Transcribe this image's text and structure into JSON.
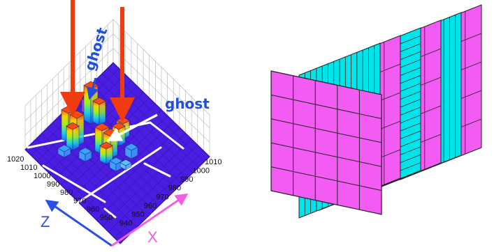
{
  "left_panel": {
    "annotations": {
      "ghost_top": "ghost",
      "ghost_right": "ghost"
    },
    "left_ticks": [
      "1020",
      "1010",
      "1000",
      "990",
      "980",
      "970",
      "960",
      "950"
    ],
    "right_ticks": [
      "1010",
      "1000",
      "990",
      "980",
      "970",
      "960",
      "950",
      "940"
    ],
    "axis_z_label": "Z",
    "axis_x_label": "X",
    "colors": {
      "floor": "#4a1de0",
      "grid": "#ffffff",
      "hit_arrow": "#f03a10",
      "ghost_arrow": "#1f4fe0",
      "z_axis": "#2a4ee8",
      "x_axis": "#f060e0"
    }
  },
  "right_panel": {
    "plane_colors": [
      "#00e5ec",
      "#f25cf2",
      "#00e5ec",
      "#f25cf2",
      "#00e5ec",
      "#f25cf2"
    ],
    "front_plane_color": "#f25cf2",
    "strip_styles": [
      "vertical",
      "pads",
      "horizontal",
      "pads",
      "vertical",
      "pads"
    ]
  }
}
